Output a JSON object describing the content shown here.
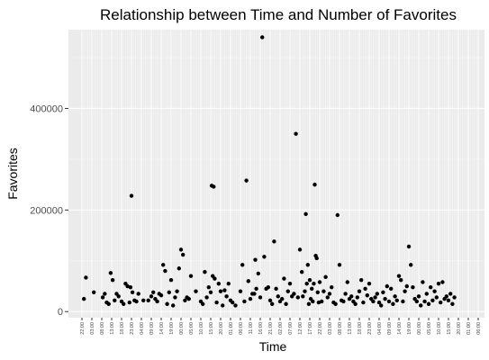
{
  "chart_data": {
    "type": "scatter",
    "title": "Relationship between Time and Number of Favorites",
    "xlabel": "Time",
    "ylabel": "Favorites",
    "ylim": [
      -12000,
      555000
    ],
    "yticks": [
      0,
      200000,
      400000
    ],
    "ytick_labels": [
      "0",
      "200000",
      "400000"
    ],
    "grid": true,
    "legend": "none",
    "x_tick_labels": [
      "22:00",
      "03:00",
      "08:00",
      "13:00",
      "18:00",
      "23:00",
      "04:00",
      "09:00",
      "14:00",
      "19:00",
      "00:00",
      "05:00",
      "10:00",
      "15:00",
      "20:00",
      "01:00",
      "06:00",
      "11:00",
      "16:00",
      "21:00",
      "02:00",
      "07:00",
      "12:00",
      "17:00",
      "22:00",
      "03:00",
      "08:00",
      "13:00",
      "18:00",
      "23:00",
      "04:00",
      "09:00",
      "14:00",
      "19:00",
      "00:00",
      "05:00",
      "10:00",
      "15:00",
      "20:00",
      "01:00",
      "06:00"
    ],
    "x_note": "x values are indices into x_tick_labels (5-hour steps, fractional values fall between labels)",
    "points": [
      [
        0.2,
        25000
      ],
      [
        0.4,
        67000
      ],
      [
        1.2,
        38000
      ],
      [
        2.1,
        28000
      ],
      [
        2.3,
        35000
      ],
      [
        2.5,
        18000
      ],
      [
        2.7,
        15000
      ],
      [
        2.9,
        76000
      ],
      [
        3.1,
        62000
      ],
      [
        3.3,
        22000
      ],
      [
        3.5,
        35000
      ],
      [
        3.7,
        30000
      ],
      [
        4.0,
        20000
      ],
      [
        4.2,
        15000
      ],
      [
        4.4,
        55000
      ],
      [
        4.6,
        50000
      ],
      [
        4.8,
        18000
      ],
      [
        4.9,
        48000
      ],
      [
        5.0,
        228000
      ],
      [
        5.1,
        38000
      ],
      [
        5.3,
        22000
      ],
      [
        5.5,
        20000
      ],
      [
        5.7,
        35000
      ],
      [
        6.2,
        22000
      ],
      [
        6.7,
        22000
      ],
      [
        7.0,
        30000
      ],
      [
        7.2,
        38000
      ],
      [
        7.4,
        25000
      ],
      [
        7.6,
        20000
      ],
      [
        7.8,
        35000
      ],
      [
        8.0,
        32000
      ],
      [
        8.2,
        92000
      ],
      [
        8.4,
        80000
      ],
      [
        8.6,
        15000
      ],
      [
        8.8,
        38000
      ],
      [
        9.0,
        62000
      ],
      [
        9.2,
        12000
      ],
      [
        9.4,
        28000
      ],
      [
        9.6,
        40000
      ],
      [
        9.8,
        85000
      ],
      [
        10.0,
        122000
      ],
      [
        10.2,
        112000
      ],
      [
        10.4,
        22000
      ],
      [
        10.6,
        28000
      ],
      [
        10.8,
        25000
      ],
      [
        11.0,
        70000
      ],
      [
        11.5,
        40000
      ],
      [
        12.0,
        20000
      ],
      [
        12.2,
        15000
      ],
      [
        12.4,
        78000
      ],
      [
        12.6,
        28000
      ],
      [
        12.8,
        48000
      ],
      [
        13.0,
        38000
      ],
      [
        13.1,
        248000
      ],
      [
        13.3,
        246000
      ],
      [
        13.2,
        70000
      ],
      [
        13.4,
        65000
      ],
      [
        13.6,
        18000
      ],
      [
        13.8,
        55000
      ],
      [
        14.0,
        40000
      ],
      [
        14.2,
        12000
      ],
      [
        14.4,
        42000
      ],
      [
        14.6,
        30000
      ],
      [
        14.8,
        55000
      ],
      [
        15.0,
        22000
      ],
      [
        15.2,
        18000
      ],
      [
        15.5,
        12000
      ],
      [
        16.0,
        40000
      ],
      [
        16.2,
        92000
      ],
      [
        16.4,
        20000
      ],
      [
        16.6,
        258000
      ],
      [
        16.8,
        60000
      ],
      [
        17.0,
        25000
      ],
      [
        17.2,
        35000
      ],
      [
        17.4,
        35000
      ],
      [
        17.5,
        102000
      ],
      [
        17.6,
        45000
      ],
      [
        17.8,
        75000
      ],
      [
        18.0,
        28000
      ],
      [
        18.2,
        540000
      ],
      [
        18.4,
        108000
      ],
      [
        18.6,
        45000
      ],
      [
        18.8,
        48000
      ],
      [
        19.0,
        22000
      ],
      [
        19.2,
        15000
      ],
      [
        19.4,
        138000
      ],
      [
        19.6,
        45000
      ],
      [
        19.8,
        30000
      ],
      [
        20.0,
        20000
      ],
      [
        20.2,
        25000
      ],
      [
        20.4,
        65000
      ],
      [
        20.6,
        15000
      ],
      [
        20.8,
        40000
      ],
      [
        21.0,
        55000
      ],
      [
        21.2,
        30000
      ],
      [
        21.4,
        35000
      ],
      [
        21.6,
        350000
      ],
      [
        21.8,
        28000
      ],
      [
        22.0,
        122000
      ],
      [
        22.2,
        78000
      ],
      [
        22.3,
        30000
      ],
      [
        22.5,
        40000
      ],
      [
        22.6,
        192000
      ],
      [
        22.7,
        55000
      ],
      [
        22.8,
        92000
      ],
      [
        22.9,
        15000
      ],
      [
        23.0,
        62000
      ],
      [
        23.1,
        25000
      ],
      [
        23.2,
        45000
      ],
      [
        23.3,
        20000
      ],
      [
        23.4,
        55000
      ],
      [
        23.5,
        250000
      ],
      [
        23.6,
        110000
      ],
      [
        23.7,
        105000
      ],
      [
        23.8,
        38000
      ],
      [
        23.9,
        18000
      ],
      [
        24.0,
        58000
      ],
      [
        24.2,
        20000
      ],
      [
        24.4,
        40000
      ],
      [
        24.6,
        68000
      ],
      [
        24.8,
        28000
      ],
      [
        25.0,
        35000
      ],
      [
        25.2,
        48000
      ],
      [
        25.4,
        18000
      ],
      [
        25.6,
        15000
      ],
      [
        25.8,
        190000
      ],
      [
        26.0,
        92000
      ],
      [
        26.2,
        22000
      ],
      [
        26.4,
        20000
      ],
      [
        26.6,
        35000
      ],
      [
        26.8,
        58000
      ],
      [
        27.0,
        25000
      ],
      [
        27.2,
        30000
      ],
      [
        27.4,
        20000
      ],
      [
        27.6,
        15000
      ],
      [
        27.8,
        28000
      ],
      [
        28.0,
        40000
      ],
      [
        28.2,
        62000
      ],
      [
        28.4,
        18000
      ],
      [
        28.6,
        45000
      ],
      [
        28.8,
        32000
      ],
      [
        29.0,
        55000
      ],
      [
        29.2,
        25000
      ],
      [
        29.4,
        20000
      ],
      [
        29.6,
        28000
      ],
      [
        29.8,
        35000
      ],
      [
        30.0,
        18000
      ],
      [
        30.2,
        12000
      ],
      [
        30.4,
        38000
      ],
      [
        30.6,
        25000
      ],
      [
        30.8,
        50000
      ],
      [
        31.0,
        20000
      ],
      [
        31.2,
        45000
      ],
      [
        31.4,
        15000
      ],
      [
        31.6,
        30000
      ],
      [
        31.8,
        22000
      ],
      [
        32.0,
        70000
      ],
      [
        32.2,
        62000
      ],
      [
        32.4,
        20000
      ],
      [
        32.6,
        40000
      ],
      [
        32.8,
        50000
      ],
      [
        33.0,
        128000
      ],
      [
        33.2,
        92000
      ],
      [
        33.4,
        48000
      ],
      [
        33.6,
        25000
      ],
      [
        33.8,
        20000
      ],
      [
        34.0,
        30000
      ],
      [
        34.2,
        12000
      ],
      [
        34.4,
        58000
      ],
      [
        34.6,
        20000
      ],
      [
        34.8,
        35000
      ],
      [
        35.0,
        15000
      ],
      [
        35.2,
        48000
      ],
      [
        35.4,
        22000
      ],
      [
        35.6,
        40000
      ],
      [
        35.8,
        28000
      ],
      [
        36.0,
        55000
      ],
      [
        36.2,
        18000
      ],
      [
        36.4,
        58000
      ],
      [
        36.6,
        25000
      ],
      [
        36.8,
        30000
      ],
      [
        37.0,
        22000
      ],
      [
        37.2,
        35000
      ],
      [
        37.4,
        15000
      ],
      [
        37.6,
        28000
      ]
    ]
  }
}
